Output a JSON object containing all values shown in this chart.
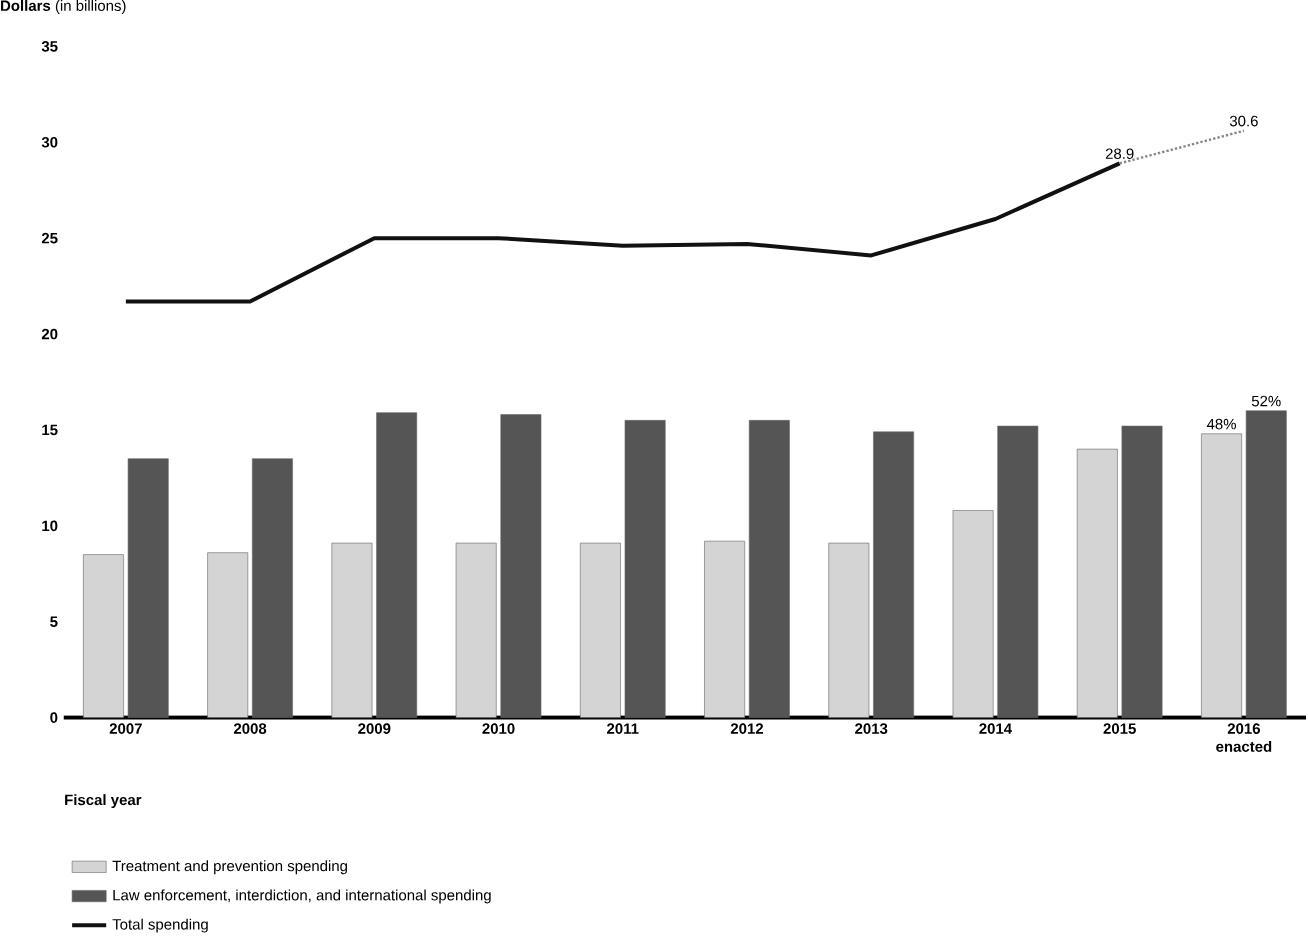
{
  "chart_data": {
    "type": "bar",
    "ylabel": "**Dollars** (in billions)",
    "xlabel": "Fiscal year",
    "categories": [
      "2007",
      "2008",
      "2009",
      "2010",
      "2011",
      "2012",
      "2013",
      "2014",
      "2015",
      "2016 enacted"
    ],
    "series": [
      {
        "name": "Treatment and prevention spending",
        "color": "#d4d4d4",
        "values": [
          8.5,
          8.6,
          9.1,
          9.1,
          9.1,
          9.2,
          9.1,
          10.8,
          14.0,
          14.8
        ]
      },
      {
        "name": "Law enforcement, interdiction, and international spending",
        "color": "#555555",
        "values": [
          13.5,
          13.5,
          15.9,
          15.8,
          15.5,
          15.5,
          14.9,
          15.2,
          15.2,
          16.0
        ]
      },
      {
        "name": "Total spending",
        "type": "line",
        "color": "#111111",
        "line_style": "solid",
        "values": [
          21.7,
          21.7,
          25.0,
          25.0,
          24.6,
          24.7,
          24.1,
          26.0,
          28.9,
          null
        ],
        "value_labels": [
          null,
          null,
          null,
          null,
          null,
          null,
          null,
          null,
          "28.9",
          null
        ]
      },
      {
        "type": "line",
        "color": "#888888",
        "line_style": "dotted",
        "values": [
          null,
          null,
          null,
          null,
          null,
          null,
          null,
          null,
          28.9,
          30.6
        ],
        "value_labels": [
          null,
          null,
          null,
          null,
          null,
          null,
          null,
          null,
          null,
          "30.6"
        ]
      }
    ],
    "annotations": [
      {
        "text": "48%",
        "x": "2016 enacted",
        "y": 14.8
      },
      {
        "text": "52%",
        "x": "2016 enacted",
        "y": 16.0
      }
    ],
    "ylim": [
      0,
      35
    ],
    "yticks": [
      0,
      5,
      10,
      15,
      20,
      25,
      30,
      35
    ],
    "grid": false,
    "legend": "bottom",
    "marker": "none"
  }
}
